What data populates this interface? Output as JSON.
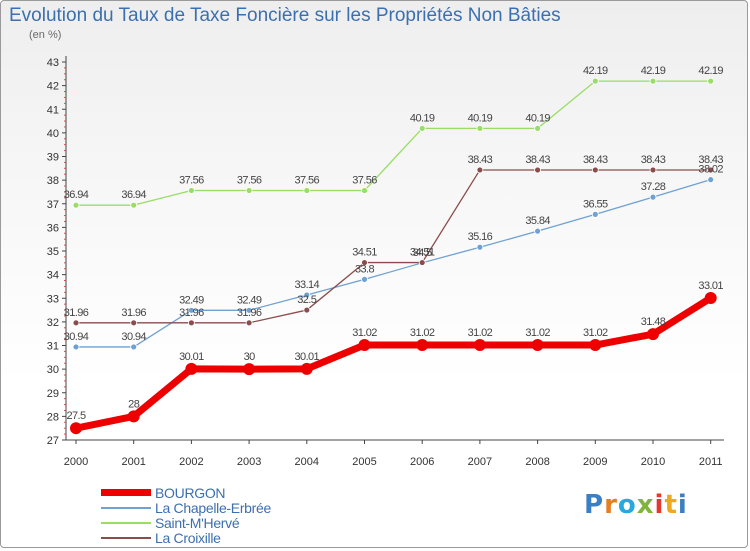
{
  "title": "Evolution du Taux de Taxe Foncière sur les Propriétés Non Bâties",
  "ylabel": "(en %)",
  "logo_text": "Proxiti",
  "chart_data": {
    "type": "line",
    "title": "Evolution du Taux de Taxe Foncière sur les Propriétés Non Bâties",
    "xlabel": "",
    "ylabel": "(en %)",
    "ylim": [
      27,
      43
    ],
    "grid": false,
    "legend_position": "bottom-left",
    "x": [
      "2000",
      "2001",
      "2002",
      "2003",
      "2004",
      "2005",
      "2006",
      "2007",
      "2008",
      "2009",
      "2010",
      "2011"
    ],
    "yticks": [
      "27",
      "28",
      "29",
      "30",
      "31",
      "32",
      "33",
      "34",
      "35",
      "36",
      "37",
      "38",
      "39",
      "40",
      "41",
      "42",
      "43"
    ],
    "series": [
      {
        "name": "BOURGON",
        "color": "#ee0000",
        "values": [
          27.5,
          28,
          30.01,
          30,
          30.01,
          31.02,
          31.02,
          31.02,
          31.02,
          31.02,
          31.48,
          33.01
        ],
        "labels": [
          "27.5",
          "28",
          "30.01",
          "30",
          "30.01",
          "31.02",
          "31.02",
          "31.02",
          "31.02",
          "31.02",
          "31.48",
          "33.01"
        ]
      },
      {
        "name": "La Chapelle-Erbrée",
        "color": "#6fa1d2",
        "values": [
          30.94,
          30.94,
          32.49,
          32.49,
          33.14,
          33.8,
          34.5,
          35.16,
          35.84,
          36.55,
          37.28,
          38.02
        ],
        "labels": [
          "30.94",
          "30.94",
          "32.49",
          "32.49",
          "33.14",
          "33.8",
          "34.5",
          "35.16",
          "35.84",
          "36.55",
          "37.28",
          "38.02"
        ]
      },
      {
        "name": "Saint-M'Hervé",
        "color": "#99dd66",
        "values": [
          36.94,
          36.94,
          37.56,
          37.56,
          37.56,
          37.56,
          40.19,
          40.19,
          40.19,
          42.19,
          42.19,
          42.19
        ],
        "labels": [
          "36.94",
          "36.94",
          "37.56",
          "37.56",
          "37.56",
          "37.56",
          "40.19",
          "40.19",
          "40.19",
          "42.19",
          "42.19",
          "42.19"
        ]
      },
      {
        "name": "La Croixille",
        "color": "#8b4c4c",
        "values": [
          31.96,
          31.96,
          31.96,
          31.96,
          32.5,
          34.51,
          34.51,
          38.43,
          38.43,
          38.43,
          38.43,
          38.43
        ],
        "labels": [
          "31.96",
          "31.96",
          "31.96",
          "31.96",
          "32.5",
          "34.51",
          "34.51",
          "38.43",
          "38.43",
          "38.43",
          "38.43",
          "38.43"
        ]
      }
    ]
  }
}
